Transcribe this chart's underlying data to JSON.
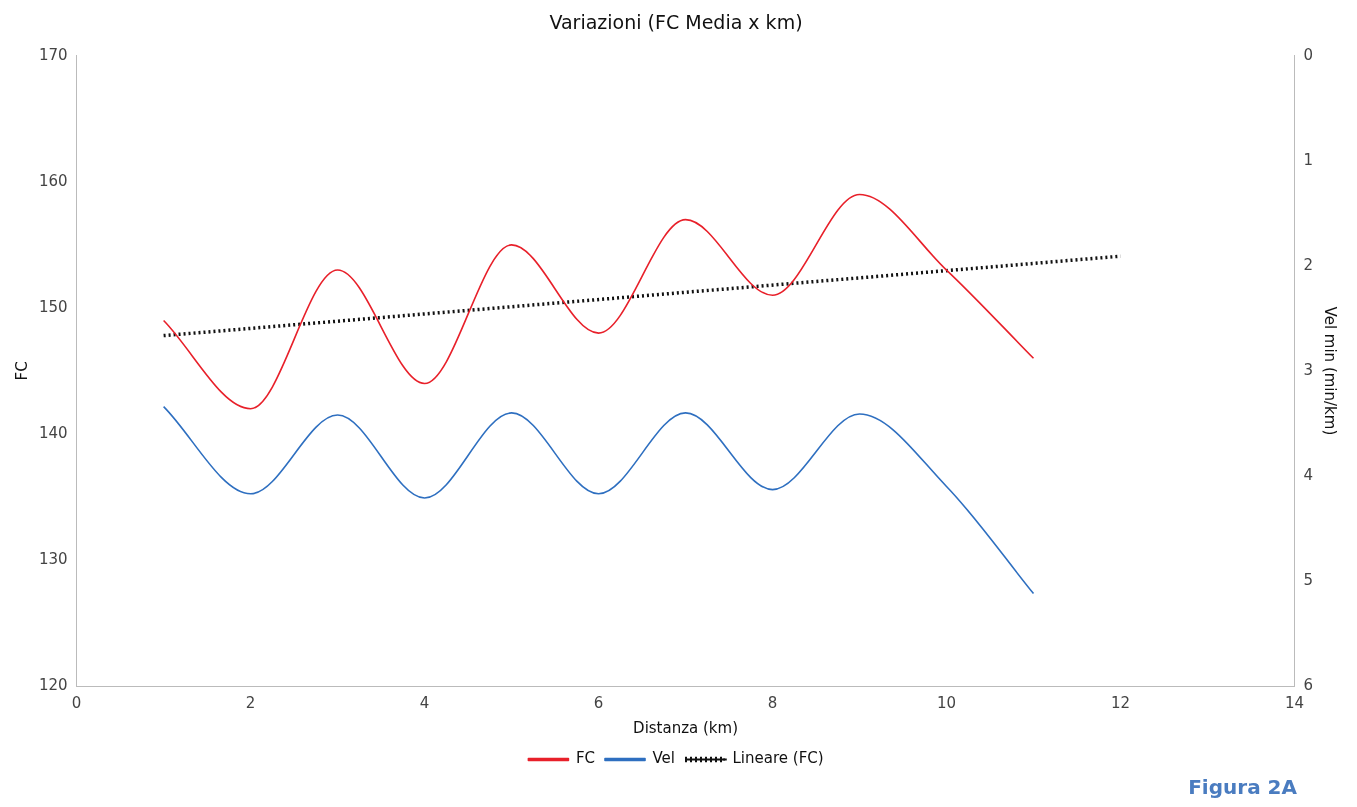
{
  "chart_data": {
    "type": "line",
    "title": "Variazioni (FC Media x km)",
    "xlabel": "Distanza (km)",
    "ylabel": "FC",
    "y2label": "Vel min (min/km)",
    "x": [
      1,
      2,
      3,
      4,
      5,
      6,
      7,
      8,
      9,
      10,
      11
    ],
    "series": [
      {
        "name": "FC",
        "color": "#e8202a",
        "values": [
          149,
          142,
          153,
          144,
          155,
          148,
          157,
          151,
          159,
          153,
          146
        ]
      },
      {
        "name": "Vel",
        "color": "#2e6fc0",
        "axis": "y2",
        "values": [
          3.34,
          4.17,
          3.42,
          4.21,
          3.4,
          4.17,
          3.4,
          4.13,
          3.41,
          4.1,
          5.12
        ]
      },
      {
        "name": "Lineare (FC)",
        "color": "#111111",
        "line_style": "dotted",
        "x": [
          1,
          12
        ],
        "values": [
          147.8,
          154.1
        ]
      }
    ],
    "xlim": [
      0,
      14
    ],
    "xticks": [
      0,
      2,
      4,
      6,
      8,
      10,
      12,
      14
    ],
    "ylim": [
      120,
      170
    ],
    "yticks": [
      120,
      130,
      140,
      150,
      160,
      170
    ],
    "y2lim": [
      6,
      0
    ],
    "y2ticks": [
      0,
      1,
      2,
      3,
      4,
      5,
      6
    ],
    "grid": false,
    "legend": "bottom",
    "marker": "none",
    "annotations": [
      "Figura 2A"
    ]
  }
}
